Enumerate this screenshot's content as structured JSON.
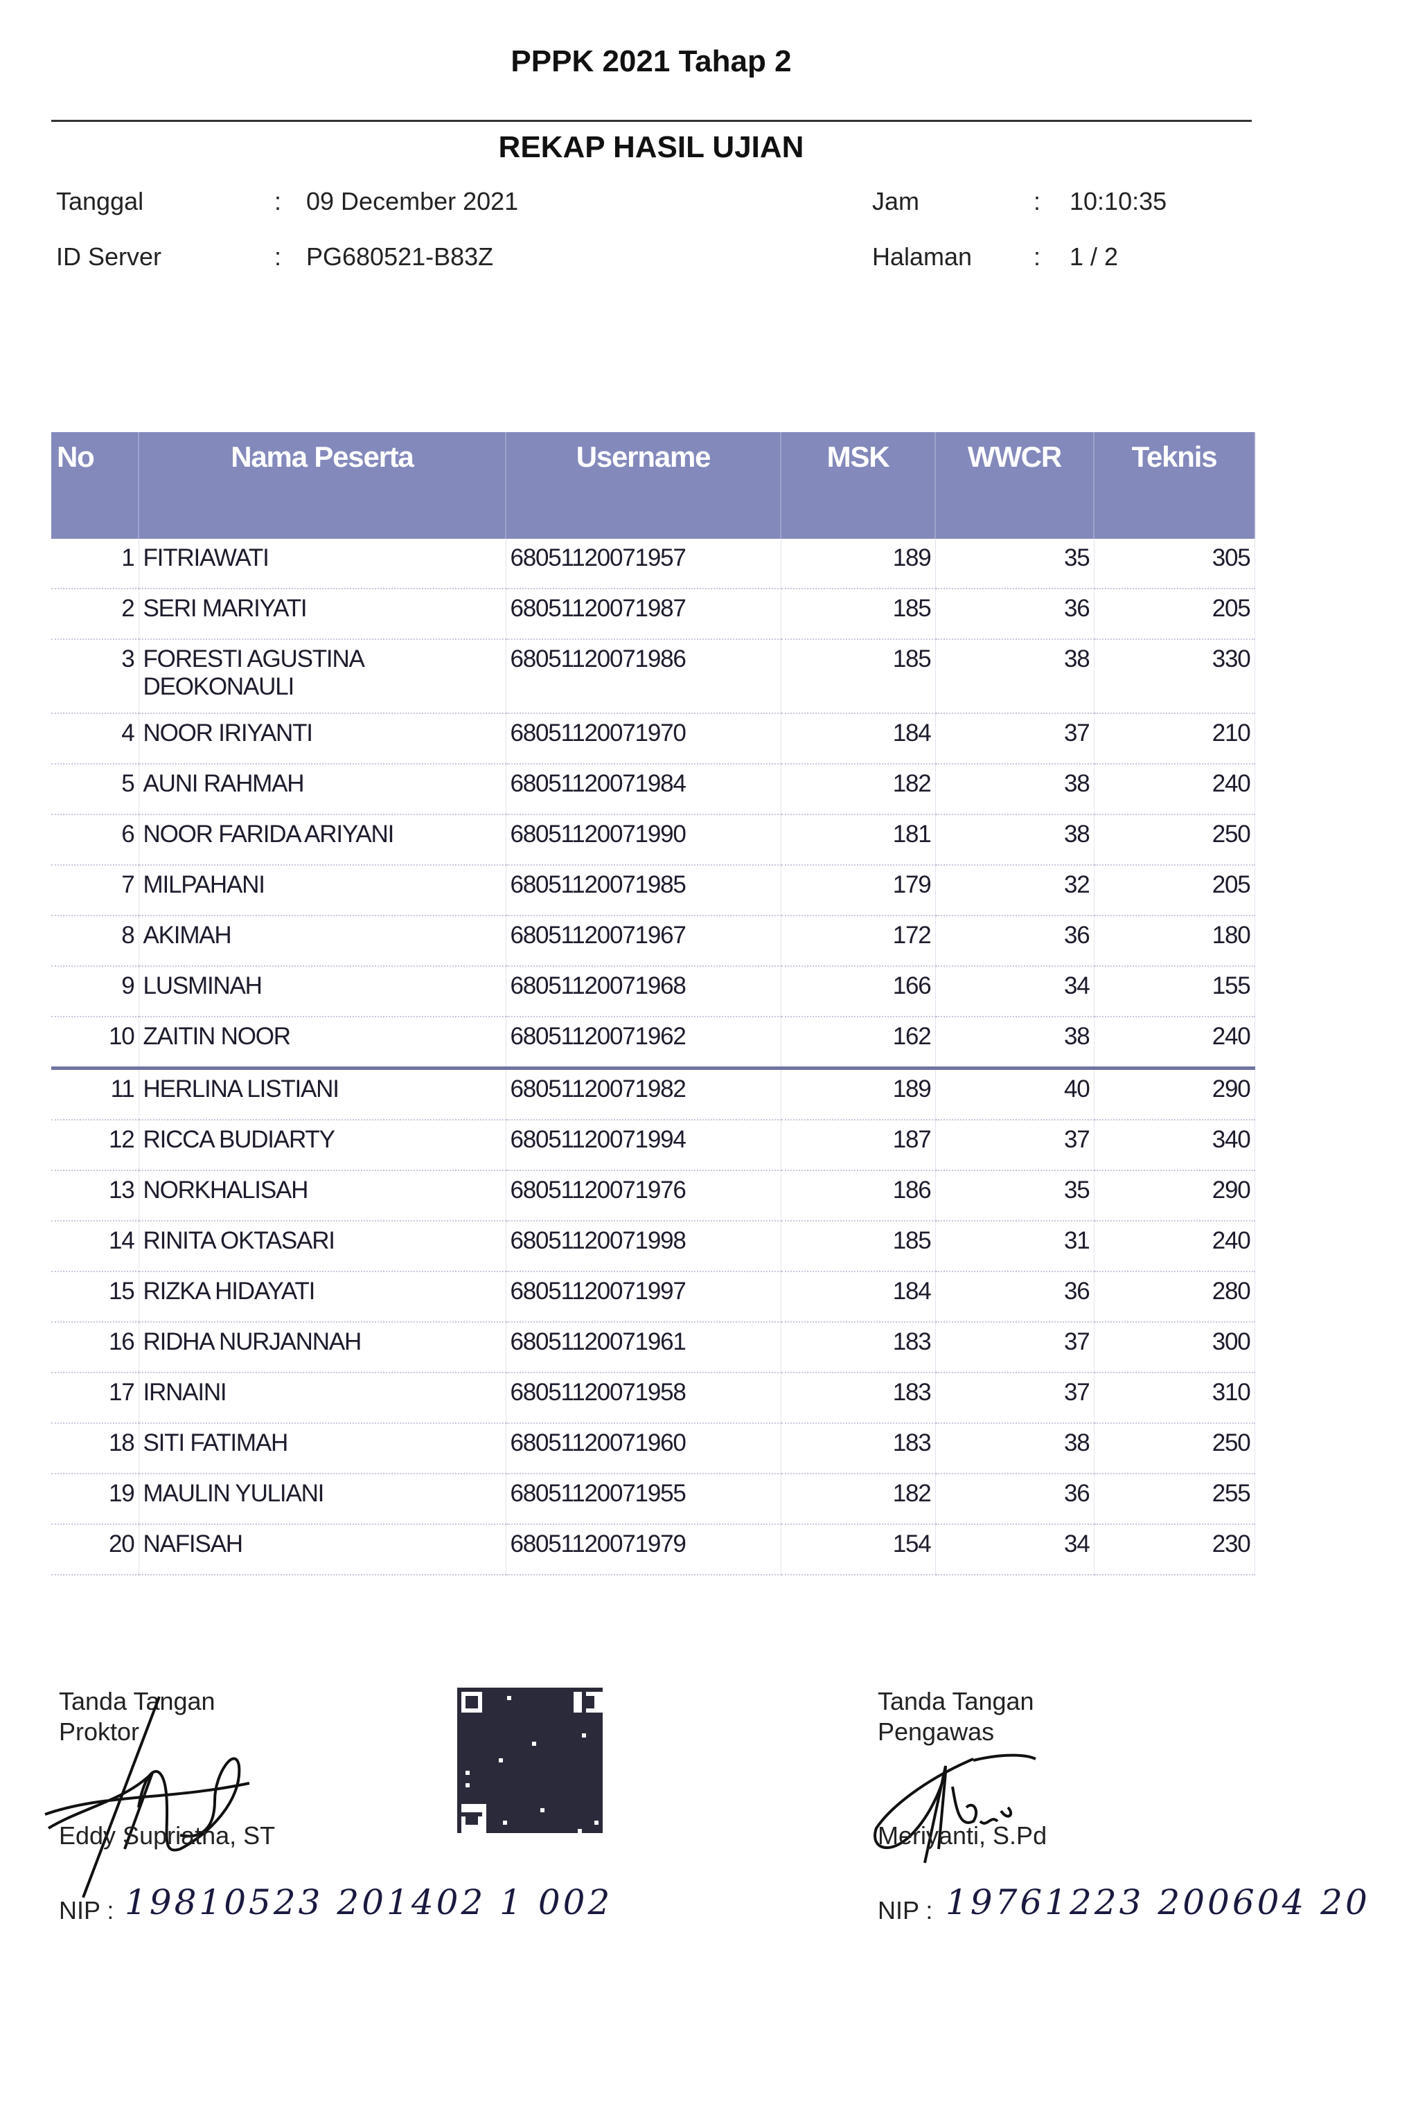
{
  "header": {
    "title": "PPPK 2021 Tahap 2",
    "subtitle": "REKAP HASIL UJIAN"
  },
  "meta": {
    "tanggal_label": "Tanggal",
    "tanggal_value": "09 December 2021",
    "server_label": "ID Server",
    "server_value": "PG680521-B83Z",
    "jam_label": "Jam",
    "jam_value": "10:10:35",
    "halaman_label": "Halaman",
    "halaman_value": "1 / 2",
    "colon": ":"
  },
  "table": {
    "columns": [
      "No",
      "Nama Peserta",
      "Username",
      "MSK",
      "WWCR",
      "Teknis"
    ],
    "header_color": "#8389bb",
    "rows": [
      [
        "1",
        "FITRIAWATI",
        "68051120071957",
        "189",
        "35",
        "305"
      ],
      [
        "2",
        "SERI MARIYATI",
        "68051120071987",
        "185",
        "36",
        "205"
      ],
      [
        "3",
        "FORESTI AGUSTINA DEOKONAULI",
        "68051120071986",
        "185",
        "38",
        "330"
      ],
      [
        "4",
        "NOOR IRIYANTI",
        "68051120071970",
        "184",
        "37",
        "210"
      ],
      [
        "5",
        "AUNI RAHMAH",
        "68051120071984",
        "182",
        "38",
        "240"
      ],
      [
        "6",
        "NOOR FARIDA ARIYANI",
        "68051120071990",
        "181",
        "38",
        "250"
      ],
      [
        "7",
        "MILPAHANI",
        "68051120071985",
        "179",
        "32",
        "205"
      ],
      [
        "8",
        "AKIMAH",
        "68051120071967",
        "172",
        "36",
        "180"
      ],
      [
        "9",
        "LUSMINAH",
        "68051120071968",
        "166",
        "34",
        "155"
      ],
      [
        "10",
        "ZAITIN NOOR",
        "68051120071962",
        "162",
        "38",
        "240"
      ],
      [
        "11",
        "HERLINA LISTIANI",
        "68051120071982",
        "189",
        "40",
        "290"
      ],
      [
        "12",
        "RICCA BUDIARTY",
        "68051120071994",
        "187",
        "37",
        "340"
      ],
      [
        "13",
        "NORKHALISAH",
        "68051120071976",
        "186",
        "35",
        "290"
      ],
      [
        "14",
        "RINITA OKTASARI",
        "68051120071998",
        "185",
        "31",
        "240"
      ],
      [
        "15",
        "RIZKA HIDAYATI",
        "68051120071997",
        "184",
        "36",
        "280"
      ],
      [
        "16",
        "RIDHA NURJANNAH",
        "68051120071961",
        "183",
        "37",
        "300"
      ],
      [
        "17",
        "IRNAINI",
        "68051120071958",
        "183",
        "37",
        "310"
      ],
      [
        "18",
        "SITI FATIMAH",
        "68051120071960",
        "183",
        "38",
        "250"
      ],
      [
        "19",
        "MAULIN YULIANI",
        "68051120071955",
        "182",
        "36",
        "255"
      ],
      [
        "20",
        "NAFISAH",
        "68051120071979",
        "154",
        "34",
        "230"
      ]
    ]
  },
  "signatures": {
    "proktor": {
      "line1": "Tanda Tangan",
      "line2": "Proktor",
      "name": "Eddy Supriatna, ST",
      "nip_label": "NIP :",
      "nip_handwritten": "19810523 201402 1 002"
    },
    "pengawas": {
      "line1": "Tanda Tangan",
      "line2": "Pengawas",
      "name": "Meriyanti, S.Pd",
      "nip_label": "NIP :",
      "nip_handwritten": "19761223 200604 20"
    },
    "qr_icon": "qr-code-icon"
  }
}
